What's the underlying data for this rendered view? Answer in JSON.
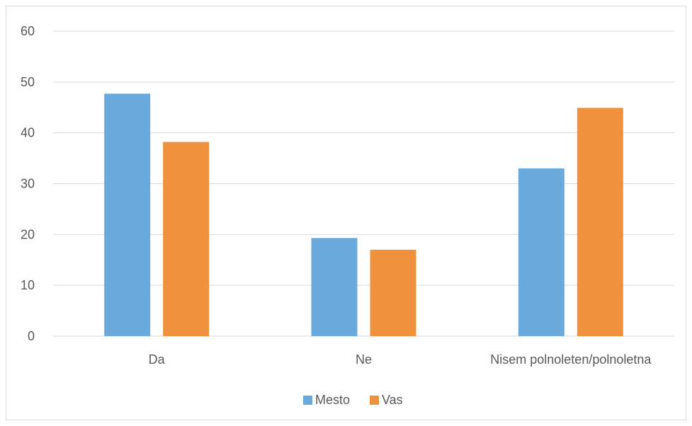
{
  "chart_data": {
    "type": "bar",
    "categories": [
      "Da",
      "Ne",
      "Nisem polnoleten/polnoletna"
    ],
    "series": [
      {
        "name": "Mesto",
        "values": [
          47.7,
          19.3,
          33.0
        ],
        "color": "#6aa9dc"
      },
      {
        "name": "Vas",
        "values": [
          38.2,
          17.0,
          44.9
        ],
        "color": "#f0913e"
      }
    ],
    "ylim": [
      0,
      60
    ],
    "yticks": [
      0,
      10,
      20,
      30,
      40,
      50,
      60
    ],
    "grid": true,
    "legend_position": "bottom"
  }
}
